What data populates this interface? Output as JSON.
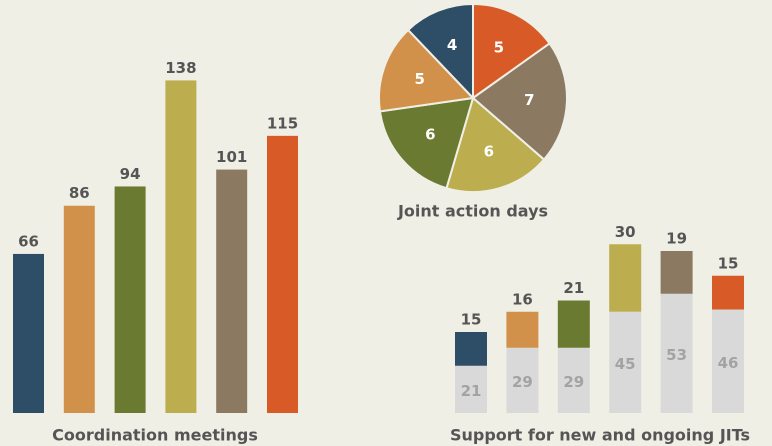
{
  "chart_data": [
    {
      "type": "bar",
      "title": "Coordination meetings",
      "values": [
        66,
        86,
        94,
        138,
        101,
        115
      ],
      "colors": [
        "#2e4d66",
        "#d2914a",
        "#6b7a31",
        "#bcae4f",
        "#8b7a61",
        "#d85a27"
      ]
    },
    {
      "type": "pie",
      "title": "Joint action days",
      "values": [
        5,
        7,
        6,
        6,
        5,
        4
      ],
      "colors": [
        "#d85a27",
        "#8b7a61",
        "#bcae4f",
        "#6b7a31",
        "#d2914a",
        "#2e4d66"
      ]
    },
    {
      "type": "stacked_bar",
      "title": "Support for new and ongoing JITs",
      "series": [
        {
          "color": "#d9d9d9",
          "values": [
            21,
            29,
            29,
            45,
            53,
            46
          ]
        },
        {
          "colors": [
            "#2e4d66",
            "#d2914a",
            "#6b7a31",
            "#bcae4f",
            "#8b7a61",
            "#d85a27"
          ],
          "values": [
            15,
            16,
            21,
            30,
            19,
            15
          ]
        }
      ]
    }
  ]
}
